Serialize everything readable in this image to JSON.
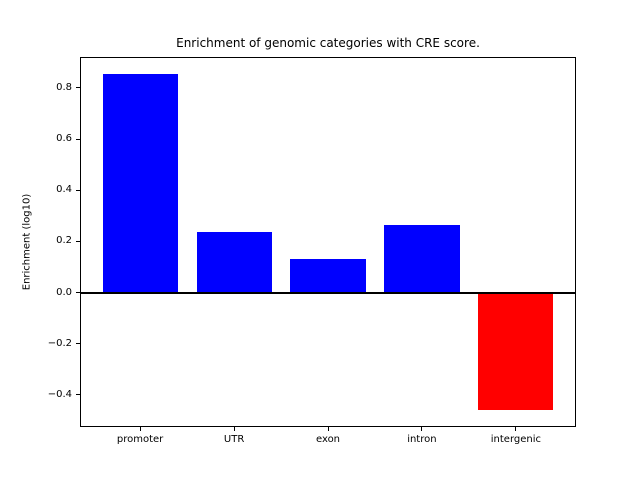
{
  "chart_data": {
    "type": "bar",
    "title": "Enrichment of genomic categories with CRE score.",
    "xlabel": "",
    "ylabel": "Enrichment (log10)",
    "categories": [
      "promoter",
      "UTR",
      "exon",
      "intron",
      "intergenic"
    ],
    "values": [
      0.855,
      0.235,
      0.13,
      0.265,
      -0.46
    ],
    "bar_colors": [
      "#0000ff",
      "#0000ff",
      "#0000ff",
      "#0000ff",
      "#ff0000"
    ],
    "positive_color": "#0000ff",
    "negative_color": "#ff0000",
    "bar_width": 0.8,
    "xlim": [
      -0.64,
      4.64
    ],
    "ylim": [
      -0.526,
      0.921
    ],
    "yticks": [
      -0.4,
      -0.2,
      0.0,
      0.2,
      0.4,
      0.6,
      0.8
    ],
    "ytick_labels": [
      "−0.4",
      "−0.2",
      "0.0",
      "0.2",
      "0.4",
      "0.6",
      "0.8"
    ],
    "zero_line": true,
    "grid": false,
    "legend": "none"
  }
}
